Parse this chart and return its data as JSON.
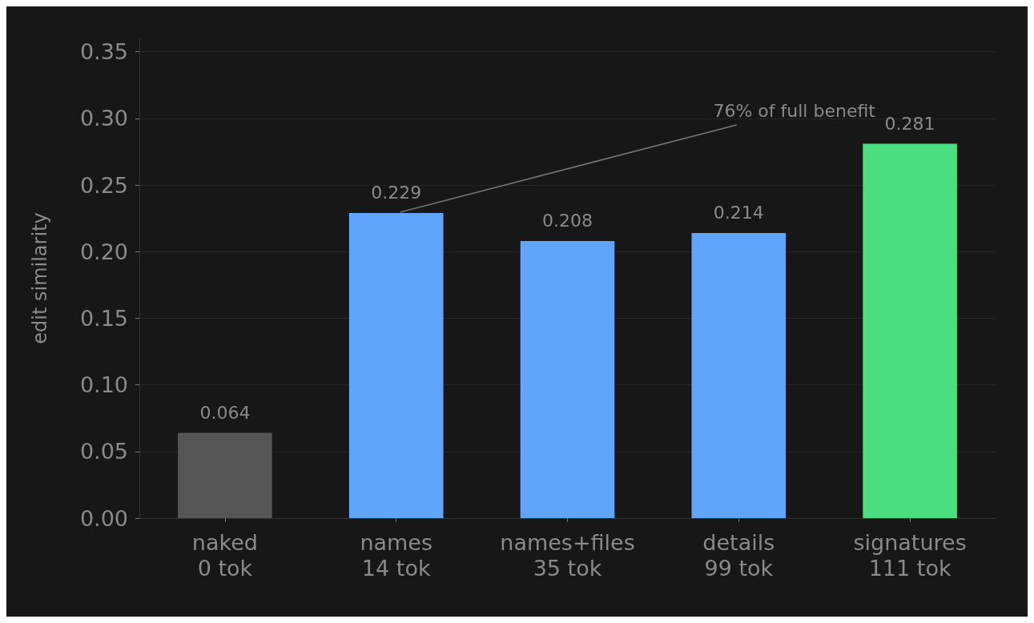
{
  "chart_data": {
    "type": "bar",
    "ylabel": "edit similarity",
    "categories": [
      "naked\n0 tok",
      "names\n14 tok",
      "names+files\n35 tok",
      "details\n99 tok",
      "signatures\n111 tok"
    ],
    "values": [
      0.064,
      0.229,
      0.208,
      0.214,
      0.281
    ],
    "colors": [
      "#555555",
      "#60a5fa",
      "#60a5fa",
      "#60a5fa",
      "#4ade80"
    ],
    "ylim": [
      0,
      0.36
    ],
    "yticks": [
      {
        "value": 0,
        "label": "0.00"
      },
      0.05,
      {
        "value": 0.1,
        "label": "0.10"
      },
      0.15,
      {
        "value": 0.2,
        "label": "0.20"
      },
      0.25,
      {
        "value": 0.3,
        "label": "0.30"
      },
      0.35
    ],
    "grid": "y",
    "data_labels": true,
    "annotations": [
      {
        "text": "76% of full benefit",
        "x": "names\n14 tok",
        "y": 0.229
      }
    ]
  }
}
